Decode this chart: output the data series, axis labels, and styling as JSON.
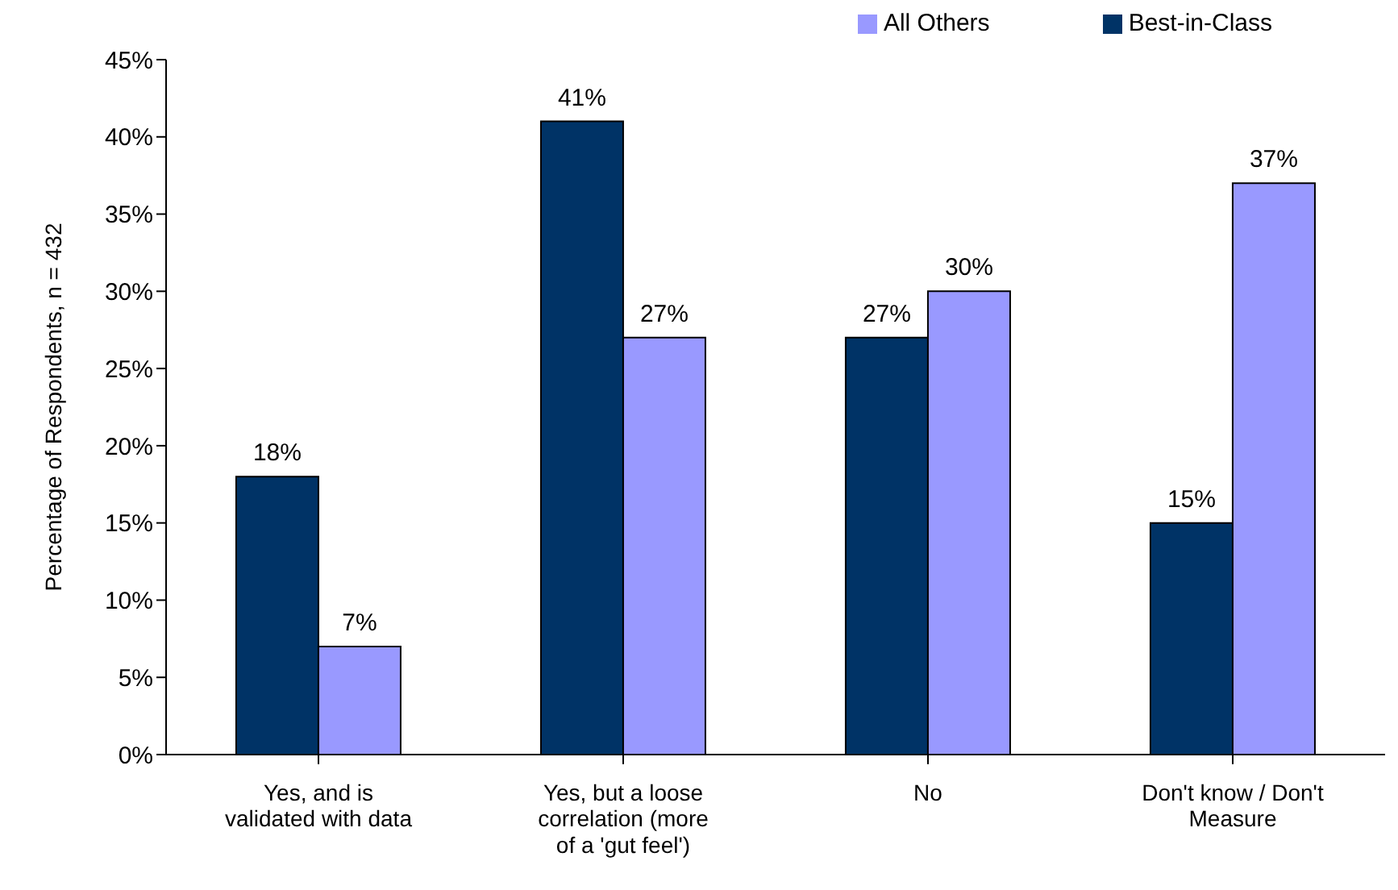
{
  "chart_data": {
    "type": "bar",
    "ylabel": "Percentage of Respondents, n = 432",
    "categories": [
      "Yes, and is validated with data",
      "Yes, but a loose correlation (more of a 'gut feel')",
      "No",
      "Don't know / Don't Measure"
    ],
    "series": [
      {
        "name": "Best-in-Class",
        "color": "#003366",
        "values": [
          18,
          41,
          27,
          15
        ],
        "value_labels": [
          "18%",
          "41%",
          "27%",
          "15%"
        ]
      },
      {
        "name": "All Others",
        "color": "#9999ff",
        "values": [
          7,
          27,
          30,
          37
        ],
        "value_labels": [
          "7%",
          "27%",
          "30%",
          "37%"
        ]
      }
    ],
    "ylim": [
      0,
      45
    ],
    "yticks": [
      {
        "value": 0,
        "label": "0%"
      },
      {
        "value": 5,
        "label": "5%"
      },
      {
        "value": 10,
        "label": "10%"
      },
      {
        "value": 15,
        "label": "15%"
      },
      {
        "value": 20,
        "label": "20%"
      },
      {
        "value": 25,
        "label": "25%"
      },
      {
        "value": 30,
        "label": "30%"
      },
      {
        "value": 35,
        "label": "35%"
      },
      {
        "value": 40,
        "label": "40%"
      },
      {
        "value": 45,
        "label": "45%"
      }
    ],
    "grid": false,
    "legend": "top right"
  }
}
